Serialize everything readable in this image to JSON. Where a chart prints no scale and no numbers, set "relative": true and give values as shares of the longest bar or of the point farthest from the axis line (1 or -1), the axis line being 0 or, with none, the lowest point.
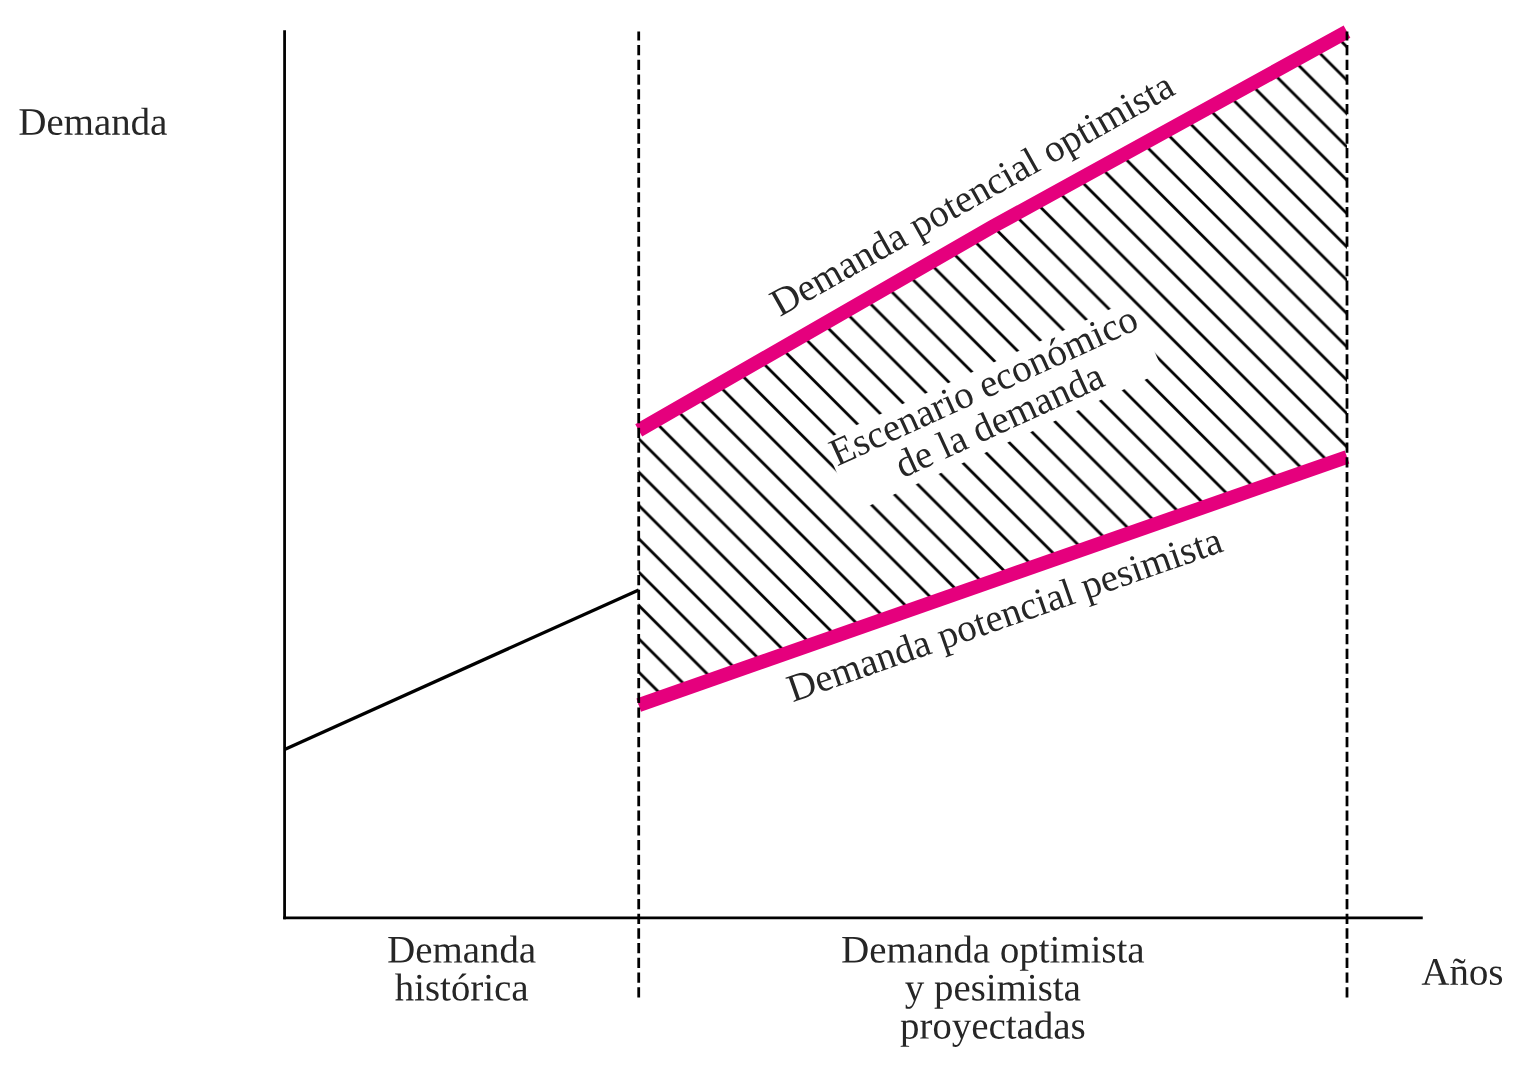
{
  "chart_data": {
    "type": "line",
    "relative": true,
    "xlabel": "Años",
    "ylabel": "Demanda",
    "categories": [
      null,
      null,
      null,
      null
    ],
    "legend": false,
    "marker": "none",
    "line_style": "solid",
    "series": [
      {
        "color": "#000000",
        "values": [
          0.19,
          0.37,
          null,
          null
        ]
      },
      {
        "name": "Demanda potencial optimista",
        "color": "#e5007d",
        "values": [
          null,
          0.55,
          0.78,
          1.0
        ],
        "lower": [
          null,
          0.24,
          0.38,
          0.52
        ],
        "upper": [
          null,
          0.55,
          0.78,
          1.0
        ]
      },
      {
        "name": "Demanda potencial pesimista",
        "color": "#e5007d",
        "values": [
          null,
          0.24,
          0.38,
          0.52
        ]
      }
    ],
    "annotations": [
      "Escenario económico\nde la demanda",
      "Demanda\nhistórica",
      "Demanda optimista\ny pesimista\nproyectadas"
    ]
  }
}
